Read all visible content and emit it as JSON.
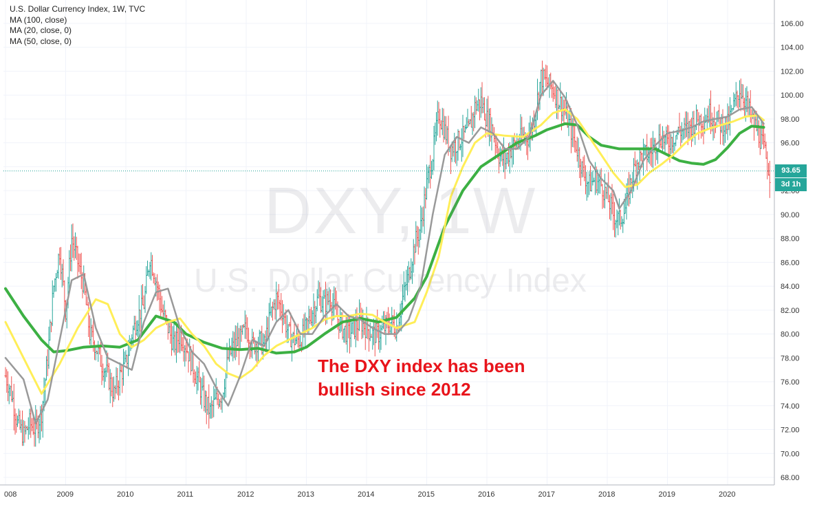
{
  "legend": {
    "title": "U.S. Dollar Currency Index, 1W, TVC",
    "ma1": "MA (100, close)",
    "ma2": "MA (20, close, 0)",
    "ma3": "MA (50, close, 0)"
  },
  "watermark": {
    "symbol": "DXY, 1W",
    "name": "U.S. Dollar Currency Index"
  },
  "annotation": {
    "line1": "The DXY index has been",
    "line2": "bullish since 2012"
  },
  "price_label": "93.65",
  "countdown_label": "3d 1h",
  "colors": {
    "up": "#26a69a",
    "down": "#ef5350",
    "ma100": "#3cb043",
    "ma20": "#999999",
    "ma50": "#ffee58",
    "price_line": "#26a69a",
    "annotation": "#e8141b"
  },
  "chart_data": {
    "type": "line",
    "ylim": [
      67,
      107.5
    ],
    "xlim": [
      2007.95,
      2020.8
    ],
    "y_ticks": [
      "106.00",
      "104.00",
      "102.00",
      "100.00",
      "98.00",
      "96.00",
      "94.00",
      "92.00",
      "90.00",
      "88.00",
      "86.00",
      "84.00",
      "82.00",
      "80.00",
      "78.00",
      "76.00",
      "74.00",
      "72.00",
      "70.00",
      "68.00"
    ],
    "x_ticks": [
      "008",
      "2009",
      "2010",
      "2011",
      "2012",
      "2013",
      "2014",
      "2015",
      "2016",
      "2017",
      "2018",
      "2019",
      "2020"
    ],
    "last_price": 93.65,
    "series": [
      {
        "name": "U.S. Dollar Currency Index",
        "type": "weekly-price",
        "x": [
          2008.0,
          2008.1,
          2008.2,
          2008.3,
          2008.4,
          2008.5,
          2008.6,
          2008.7,
          2008.8,
          2008.9,
          2009.0,
          2009.1,
          2009.2,
          2009.3,
          2009.4,
          2009.5,
          2009.6,
          2009.7,
          2009.8,
          2009.9,
          2010.0,
          2010.1,
          2010.2,
          2010.3,
          2010.4,
          2010.5,
          2010.6,
          2010.7,
          2010.8,
          2010.9,
          2011.0,
          2011.1,
          2011.2,
          2011.3,
          2011.4,
          2011.5,
          2011.6,
          2011.7,
          2011.8,
          2011.9,
          2012.0,
          2012.1,
          2012.2,
          2012.3,
          2012.4,
          2012.5,
          2012.6,
          2012.7,
          2012.8,
          2012.9,
          2013.0,
          2013.1,
          2013.2,
          2013.3,
          2013.4,
          2013.5,
          2013.6,
          2013.7,
          2013.8,
          2013.9,
          2014.0,
          2014.1,
          2014.2,
          2014.3,
          2014.4,
          2014.5,
          2014.6,
          2014.7,
          2014.8,
          2014.9,
          2015.0,
          2015.1,
          2015.2,
          2015.3,
          2015.4,
          2015.5,
          2015.6,
          2015.7,
          2015.8,
          2015.9,
          2016.0,
          2016.1,
          2016.2,
          2016.3,
          2016.4,
          2016.5,
          2016.6,
          2016.7,
          2016.8,
          2016.9,
          2017.0,
          2017.1,
          2017.2,
          2017.3,
          2017.4,
          2017.5,
          2017.6,
          2017.7,
          2017.8,
          2017.9,
          2018.0,
          2018.1,
          2018.2,
          2018.3,
          2018.4,
          2018.5,
          2018.6,
          2018.7,
          2018.8,
          2018.9,
          2019.0,
          2019.1,
          2019.2,
          2019.3,
          2019.4,
          2019.5,
          2019.6,
          2019.7,
          2019.8,
          2019.9,
          2020.0,
          2020.1,
          2020.2,
          2020.3,
          2020.4,
          2020.5,
          2020.6,
          2020.7
        ],
        "values": [
          76.5,
          75.0,
          72.5,
          71.5,
          72.5,
          72.0,
          73.5,
          78.0,
          84.0,
          87.0,
          82.0,
          88.0,
          86.0,
          84.0,
          80.0,
          79.0,
          77.5,
          76.5,
          75.0,
          76.5,
          77.5,
          80.0,
          81.5,
          82.5,
          86.5,
          84.5,
          82.0,
          80.5,
          79.0,
          80.0,
          79.0,
          77.5,
          76.0,
          74.5,
          73.5,
          74.5,
          75.0,
          78.0,
          79.0,
          79.5,
          80.5,
          79.0,
          79.5,
          79.0,
          81.5,
          83.0,
          82.0,
          80.0,
          79.5,
          79.5,
          80.5,
          82.0,
          83.0,
          82.5,
          83.0,
          81.5,
          80.5,
          80.0,
          80.5,
          81.0,
          80.5,
          80.0,
          80.0,
          80.5,
          81.0,
          80.5,
          83.0,
          85.0,
          87.5,
          89.0,
          92.5,
          95.0,
          98.5,
          97.0,
          95.5,
          96.0,
          96.5,
          97.0,
          99.0,
          99.5,
          98.0,
          97.0,
          95.0,
          94.5,
          95.5,
          96.0,
          96.5,
          96.5,
          98.5,
          101.5,
          101.0,
          100.5,
          99.5,
          98.5,
          97.0,
          95.5,
          93.5,
          92.5,
          93.0,
          92.5,
          91.5,
          90.0,
          89.5,
          90.5,
          93.0,
          94.5,
          95.0,
          95.0,
          96.0,
          96.5,
          96.0,
          96.5,
          97.0,
          97.0,
          97.5,
          98.0,
          98.0,
          98.5,
          98.0,
          97.5,
          97.5,
          99.0,
          100.5,
          99.5,
          98.0,
          97.0,
          95.5,
          93.5
        ]
      },
      {
        "name": "MA (100, close)",
        "x": [
          2008.0,
          2008.3,
          2008.6,
          2008.8,
          2009.0,
          2009.3,
          2009.6,
          2009.9,
          2010.2,
          2010.5,
          2010.8,
          2011.0,
          2011.3,
          2011.6,
          2011.9,
          2012.2,
          2012.5,
          2012.8,
          2013.0,
          2013.3,
          2013.6,
          2013.9,
          2014.2,
          2014.5,
          2014.8,
          2015.0,
          2015.3,
          2015.6,
          2015.9,
          2016.2,
          2016.5,
          2016.8,
          2017.0,
          2017.3,
          2017.5,
          2017.7,
          2017.9,
          2018.2,
          2018.5,
          2018.8,
          2019.0,
          2019.2,
          2019.4,
          2019.6,
          2019.8,
          2020.0,
          2020.2,
          2020.4,
          2020.6
        ],
        "values": [
          83.8,
          81.5,
          79.5,
          78.5,
          78.6,
          78.9,
          79.0,
          78.9,
          79.5,
          81.5,
          81.0,
          80.0,
          79.3,
          78.8,
          78.7,
          78.8,
          78.4,
          78.5,
          78.9,
          80.0,
          81.0,
          81.3,
          81.0,
          81.4,
          83.0,
          84.8,
          89.0,
          92.0,
          94.0,
          95.0,
          96.0,
          96.6,
          97.1,
          97.6,
          97.5,
          96.5,
          95.8,
          95.5,
          95.5,
          95.5,
          95.0,
          94.5,
          94.3,
          94.2,
          94.6,
          95.6,
          96.8,
          97.4,
          97.3
        ]
      },
      {
        "name": "MA (20, close, 0)",
        "x": [
          2008.0,
          2008.3,
          2008.5,
          2008.7,
          2008.9,
          2009.1,
          2009.3,
          2009.5,
          2009.7,
          2009.9,
          2010.1,
          2010.3,
          2010.5,
          2010.7,
          2010.9,
          2011.1,
          2011.3,
          2011.5,
          2011.7,
          2011.9,
          2012.1,
          2012.3,
          2012.5,
          2012.7,
          2012.9,
          2013.1,
          2013.3,
          2013.5,
          2013.7,
          2013.9,
          2014.1,
          2014.3,
          2014.5,
          2014.7,
          2014.9,
          2015.1,
          2015.3,
          2015.5,
          2015.7,
          2015.9,
          2016.1,
          2016.3,
          2016.5,
          2016.7,
          2016.9,
          2017.1,
          2017.3,
          2017.5,
          2017.7,
          2017.9,
          2018.1,
          2018.2,
          2018.4,
          2018.6,
          2018.8,
          2019.0,
          2019.2,
          2019.4,
          2019.6,
          2019.8,
          2020.0,
          2020.2,
          2020.4,
          2020.6
        ],
        "values": [
          78.0,
          76.2,
          72.5,
          74.5,
          79.5,
          84.5,
          85.0,
          80.5,
          78.0,
          77.5,
          77.0,
          81.0,
          83.5,
          83.8,
          80.5,
          78.5,
          77.5,
          75.5,
          74.0,
          76.5,
          79.5,
          79.0,
          81.0,
          82.0,
          80.0,
          80.0,
          81.5,
          82.5,
          81.5,
          81.2,
          80.5,
          80.0,
          80.0,
          81.2,
          84.0,
          90.0,
          95.0,
          96.5,
          96.0,
          97.3,
          96.8,
          95.5,
          95.5,
          96.5,
          100.0,
          101.2,
          99.8,
          97.5,
          94.5,
          93.0,
          92.0,
          90.5,
          92.0,
          94.5,
          95.8,
          96.8,
          97.0,
          97.3,
          97.8,
          98.0,
          98.2,
          98.8,
          99.0,
          97.6
        ]
      },
      {
        "name": "MA (50, close, 0)",
        "x": [
          2008.0,
          2008.3,
          2008.6,
          2008.9,
          2009.2,
          2009.5,
          2009.7,
          2009.9,
          2010.1,
          2010.3,
          2010.5,
          2010.7,
          2010.9,
          2011.1,
          2011.3,
          2011.5,
          2011.7,
          2011.9,
          2012.1,
          2012.3,
          2012.5,
          2012.7,
          2012.9,
          2013.1,
          2013.3,
          2013.5,
          2013.7,
          2013.9,
          2014.1,
          2014.3,
          2014.5,
          2014.8,
          2015.0,
          2015.2,
          2015.4,
          2015.6,
          2015.8,
          2016.0,
          2016.3,
          2016.6,
          2016.9,
          2017.1,
          2017.3,
          2017.5,
          2017.7,
          2017.9,
          2018.1,
          2018.3,
          2018.5,
          2018.7,
          2018.9,
          2019.1,
          2019.3,
          2019.5,
          2019.7,
          2019.9,
          2020.1,
          2020.3,
          2020.5,
          2020.6
        ],
        "values": [
          81.0,
          78.0,
          75.0,
          77.5,
          80.5,
          82.9,
          82.5,
          80.0,
          78.9,
          79.5,
          80.5,
          81.0,
          81.3,
          80.0,
          79.0,
          77.5,
          76.7,
          76.3,
          77.0,
          78.2,
          79.0,
          79.5,
          80.0,
          80.5,
          81.2,
          81.5,
          81.5,
          81.7,
          81.6,
          81.0,
          80.5,
          81.0,
          83.5,
          86.5,
          91.5,
          94.0,
          96.0,
          96.8,
          96.6,
          96.5,
          97.5,
          98.5,
          98.8,
          98.0,
          96.5,
          95.0,
          93.5,
          92.3,
          92.5,
          93.5,
          94.2,
          95.0,
          96.0,
          96.8,
          97.2,
          97.5,
          97.8,
          98.2,
          98.3,
          97.9
        ]
      }
    ]
  }
}
